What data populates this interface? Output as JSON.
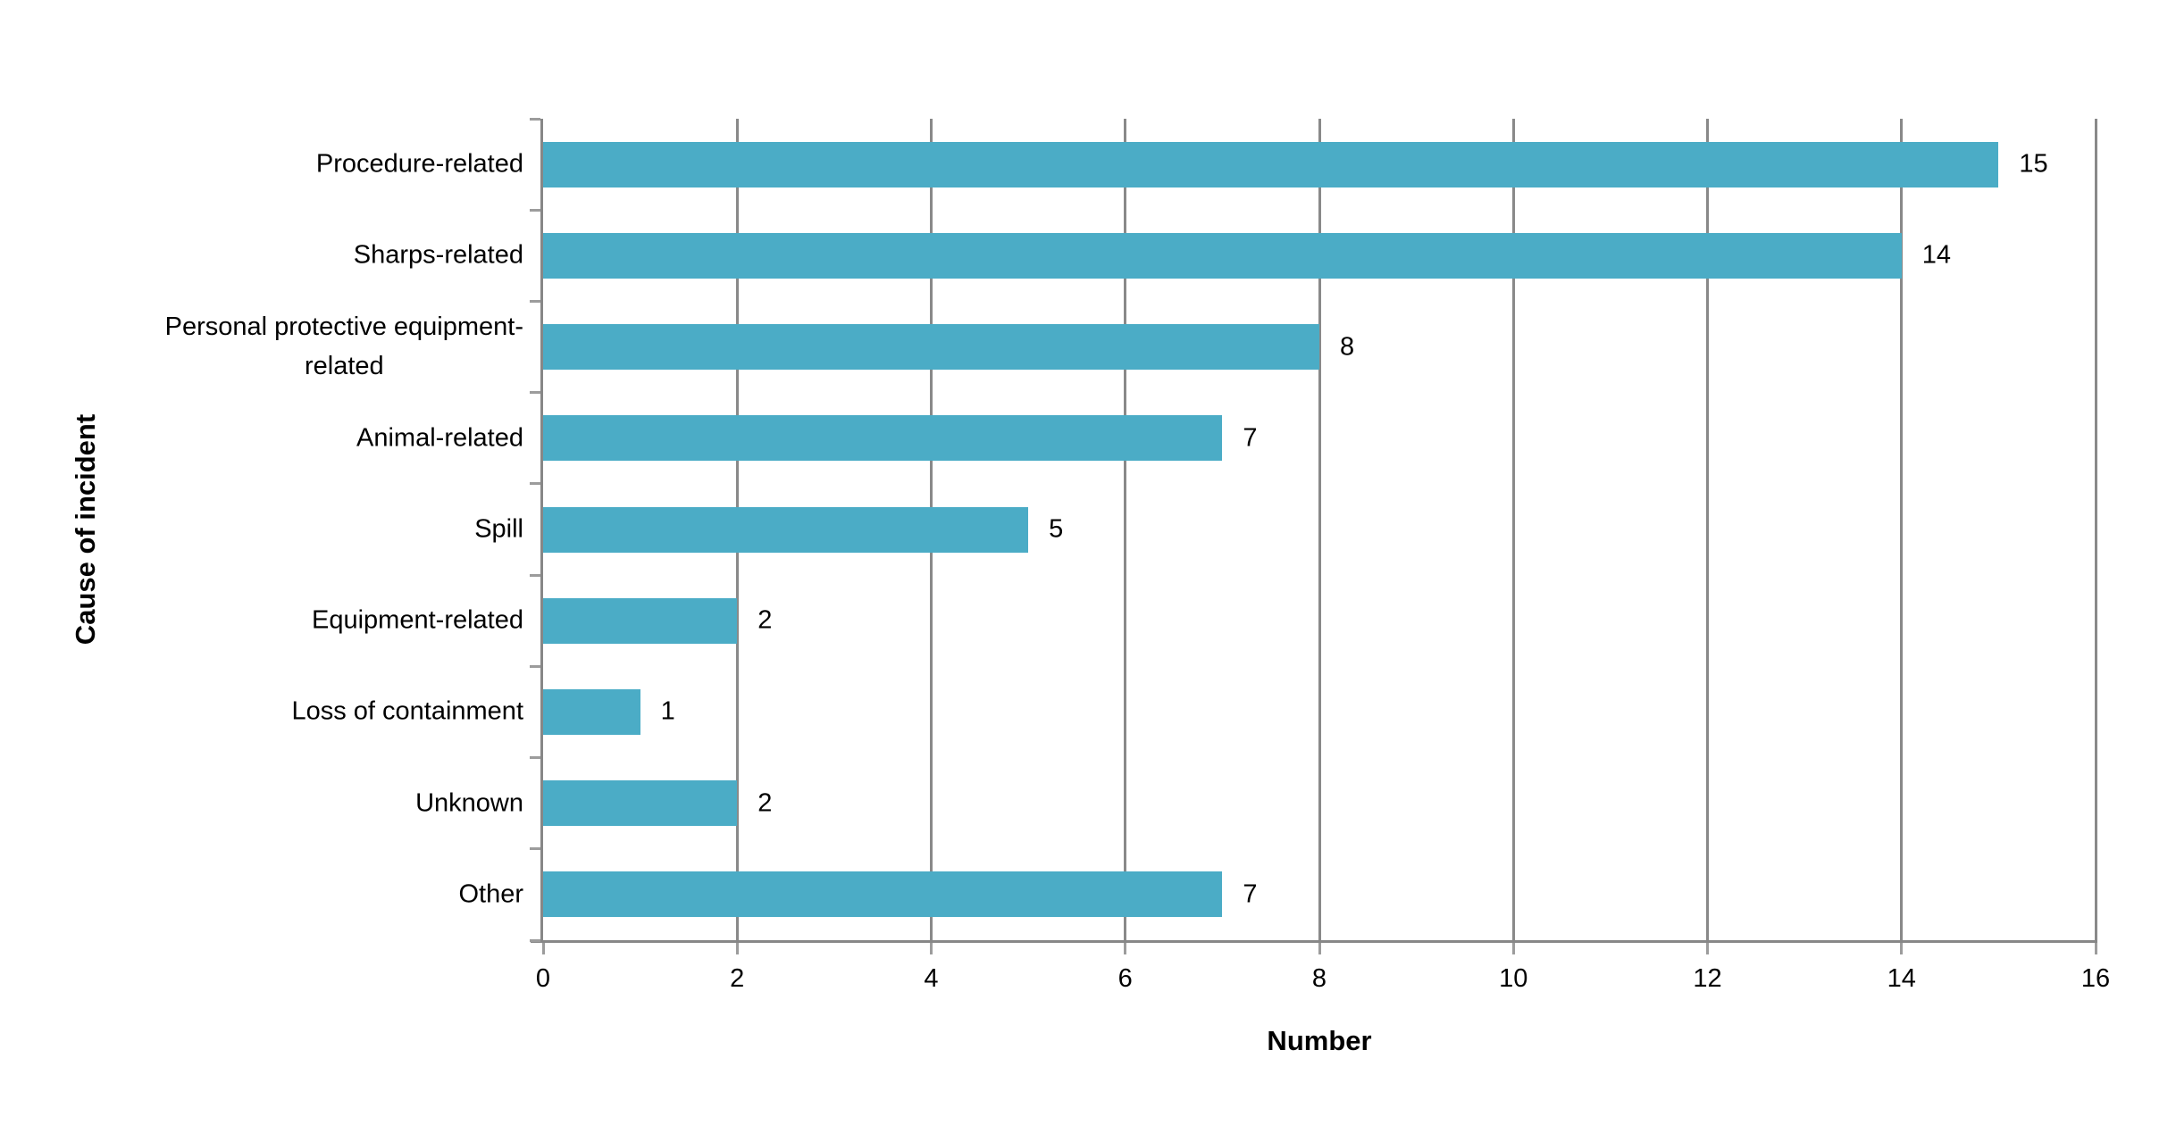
{
  "chart_data": {
    "type": "bar",
    "orientation": "horizontal",
    "title": "",
    "xlabel": "Number",
    "ylabel": "Cause of incident",
    "categories": [
      "Procedure-related",
      "Sharps-related",
      "Personal protective equipment-\nrelated",
      "Animal-related",
      "Spill",
      "Equipment-related",
      "Loss of containment",
      "Unknown",
      "Other"
    ],
    "values": [
      15,
      14,
      8,
      7,
      5,
      2,
      1,
      2,
      7
    ],
    "data_labels": [
      "15",
      "14",
      "8",
      "7",
      "5",
      "2",
      "1",
      "2",
      "7"
    ],
    "xlim": [
      0,
      16
    ],
    "xticks": [
      0,
      2,
      4,
      6,
      8,
      10,
      12,
      14,
      16
    ],
    "grid": "vertical-on",
    "legend": "none",
    "bar_color": "#4BACC6",
    "grid_color": "#898989",
    "axis_color": "#878787",
    "text_color": "#000000",
    "background_color": "#FFFFFF"
  }
}
